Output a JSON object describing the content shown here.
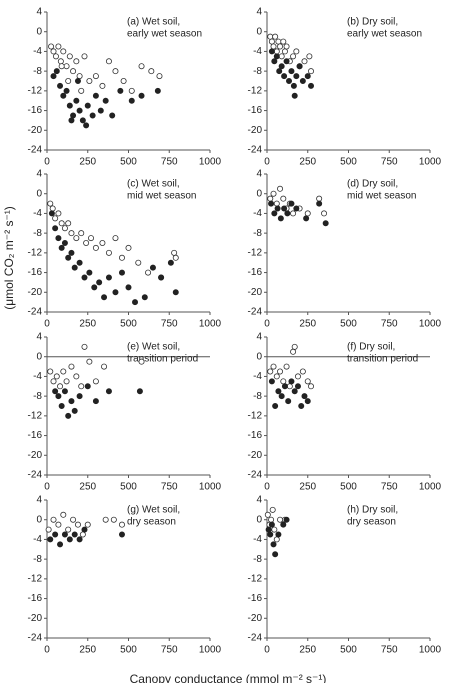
{
  "figure": {
    "xlabel": "Canopy conductance (mmol m⁻² s⁻¹)",
    "ylabel": "(μmol CO₂ m⁻² s⁻¹)"
  },
  "chart_data": [
    {
      "type": "scatter",
      "annotation": [
        "(a) Wet soil,",
        "early wet season"
      ],
      "xlim": [
        0,
        1000
      ],
      "xticks": [
        0,
        250,
        500,
        750,
        1000
      ],
      "ylim": [
        -24,
        4
      ],
      "yticks": [
        -24,
        -20,
        -16,
        -12,
        -8,
        -4,
        0,
        4
      ],
      "zero_line": false,
      "series": [
        {
          "color": "#333333",
          "filled": false,
          "x": [
            25,
            40,
            55,
            70,
            85,
            100,
            120,
            140,
            160,
            180,
            200,
            230,
            260,
            300,
            340,
            380,
            420,
            470,
            520,
            580,
            640,
            690,
            130,
            210,
            90
          ],
          "values": [
            -3,
            -4,
            -5,
            -3,
            -6,
            -4,
            -7,
            -5,
            -8,
            -6,
            -9,
            -5,
            -10,
            -9,
            -11,
            -6,
            -8,
            -10,
            -12,
            -7,
            -8,
            -9,
            -10,
            -12,
            -7
          ]
        },
        {
          "color": "#222222",
          "filled": true,
          "x": [
            40,
            60,
            80,
            100,
            120,
            140,
            160,
            180,
            200,
            220,
            250,
            280,
            300,
            330,
            360,
            400,
            450,
            520,
            580,
            680,
            150,
            240,
            190
          ],
          "values": [
            -9,
            -8,
            -11,
            -13,
            -12,
            -15,
            -17,
            -14,
            -16,
            -18,
            -15,
            -17,
            -13,
            -16,
            -14,
            -17,
            -12,
            -14,
            -13,
            -12,
            -18,
            -19,
            -10
          ]
        }
      ]
    },
    {
      "type": "scatter",
      "annotation": [
        "(b) Dry soil,",
        "early wet season"
      ],
      "xlim": [
        0,
        1000
      ],
      "xticks": [
        0,
        250,
        500,
        750,
        1000
      ],
      "ylim": [
        -24,
        4
      ],
      "yticks": [
        -24,
        -20,
        -16,
        -12,
        -8,
        -4,
        0,
        4
      ],
      "zero_line": false,
      "series": [
        {
          "color": "#333333",
          "filled": false,
          "x": [
            20,
            30,
            40,
            50,
            60,
            70,
            80,
            90,
            100,
            110,
            120,
            140,
            160,
            180,
            200,
            230,
            260,
            270
          ],
          "values": [
            -1,
            -2,
            -3,
            -1,
            -4,
            -2,
            -3,
            -5,
            -2,
            -4,
            -3,
            -6,
            -5,
            -4,
            -7,
            -6,
            -5,
            -8
          ]
        },
        {
          "color": "#222222",
          "filled": true,
          "x": [
            30,
            45,
            60,
            75,
            90,
            105,
            120,
            135,
            150,
            165,
            180,
            200,
            220,
            250,
            270,
            170
          ],
          "values": [
            -4,
            -6,
            -5,
            -8,
            -7,
            -9,
            -6,
            -10,
            -8,
            -11,
            -9,
            -7,
            -10,
            -9,
            -11,
            -13
          ]
        }
      ]
    },
    {
      "type": "scatter",
      "annotation": [
        "(c) Wet soil,",
        "mid wet season"
      ],
      "xlim": [
        0,
        1000
      ],
      "xticks": [
        0,
        250,
        500,
        750,
        1000
      ],
      "ylim": [
        -24,
        4
      ],
      "yticks": [
        -24,
        -20,
        -16,
        -12,
        -8,
        -4,
        0,
        4
      ],
      "zero_line": false,
      "series": [
        {
          "color": "#333333",
          "filled": false,
          "x": [
            20,
            35,
            50,
            70,
            90,
            110,
            130,
            150,
            180,
            210,
            240,
            270,
            300,
            340,
            380,
            420,
            460,
            500,
            560,
            620,
            700,
            780,
            790
          ],
          "values": [
            -2,
            -3,
            -5,
            -4,
            -6,
            -7,
            -6,
            -8,
            -9,
            -8,
            -10,
            -9,
            -11,
            -10,
            -12,
            -9,
            -13,
            -11,
            -14,
            -16,
            -17,
            -12,
            -13
          ]
        },
        {
          "color": "#222222",
          "filled": true,
          "x": [
            30,
            50,
            70,
            90,
            110,
            130,
            150,
            170,
            200,
            230,
            260,
            290,
            320,
            350,
            380,
            420,
            460,
            500,
            540,
            600,
            650,
            700,
            790,
            760
          ],
          "values": [
            -4,
            -7,
            -9,
            -11,
            -10,
            -13,
            -12,
            -15,
            -14,
            -17,
            -16,
            -19,
            -18,
            -21,
            -17,
            -20,
            -16,
            -19,
            -22,
            -21,
            -15,
            -17,
            -20,
            -14
          ]
        }
      ]
    },
    {
      "type": "scatter",
      "annotation": [
        "(d) Dry soil,",
        "mid wet season"
      ],
      "xlim": [
        0,
        1000
      ],
      "xticks": [
        0,
        250,
        500,
        750,
        1000
      ],
      "ylim": [
        -24,
        4
      ],
      "yticks": [
        -24,
        -20,
        -16,
        -12,
        -8,
        -4,
        0,
        4
      ],
      "zero_line": false,
      "series": [
        {
          "color": "#333333",
          "filled": false,
          "x": [
            20,
            40,
            60,
            80,
            100,
            120,
            140,
            160,
            200,
            250,
            320,
            350
          ],
          "values": [
            -1,
            0,
            -2,
            1,
            -1,
            -3,
            -2,
            -4,
            -3,
            -4,
            -1,
            -4
          ]
        },
        {
          "color": "#222222",
          "filled": true,
          "x": [
            25,
            45,
            65,
            85,
            105,
            125,
            150,
            180,
            240,
            320,
            360
          ],
          "values": [
            -2,
            -4,
            -3,
            -5,
            -3,
            -4,
            -2,
            -3,
            -5,
            -2,
            -6
          ]
        }
      ]
    },
    {
      "type": "scatter",
      "annotation": [
        "(e) Wet soil,",
        "transition period"
      ],
      "xlim": [
        0,
        1000
      ],
      "xticks": [
        0,
        250,
        500,
        750,
        1000
      ],
      "ylim": [
        -24,
        4
      ],
      "yticks": [
        -24,
        -20,
        -16,
        -12,
        -8,
        -4,
        0,
        4
      ],
      "zero_line": true,
      "series": [
        {
          "color": "#333333",
          "filled": false,
          "x": [
            20,
            40,
            60,
            80,
            100,
            120,
            150,
            180,
            210,
            230,
            260,
            300,
            350,
            580
          ],
          "values": [
            -3,
            -5,
            -4,
            -6,
            -3,
            -5,
            -2,
            -4,
            -6,
            2,
            -1,
            -5,
            -2,
            -1
          ]
        },
        {
          "color": "#222222",
          "filled": true,
          "x": [
            50,
            70,
            90,
            110,
            130,
            150,
            170,
            200,
            250,
            300,
            380,
            570
          ],
          "values": [
            -7,
            -8,
            -10,
            -7,
            -12,
            -9,
            -11,
            -8,
            -6,
            -9,
            -7,
            -7
          ]
        }
      ]
    },
    {
      "type": "scatter",
      "annotation": [
        "(f) Dry soil,",
        "transition period"
      ],
      "xlim": [
        0,
        1000
      ],
      "xticks": [
        0,
        250,
        500,
        750,
        1000
      ],
      "ylim": [
        -24,
        4
      ],
      "yticks": [
        -24,
        -20,
        -16,
        -12,
        -8,
        -4,
        0,
        4
      ],
      "zero_line": true,
      "series": [
        {
          "color": "#333333",
          "filled": false,
          "x": [
            20,
            40,
            60,
            80,
            100,
            120,
            140,
            160,
            170,
            190,
            220,
            250,
            270
          ],
          "values": [
            -3,
            -2,
            -4,
            -3,
            -5,
            -2,
            -6,
            1,
            2,
            -4,
            -3,
            -5,
            -6
          ]
        },
        {
          "color": "#222222",
          "filled": true,
          "x": [
            30,
            50,
            70,
            90,
            110,
            130,
            150,
            170,
            190,
            210,
            230,
            250
          ],
          "values": [
            -5,
            -10,
            -7,
            -8,
            -6,
            -9,
            -5,
            -7,
            -6,
            -10,
            -8,
            -9
          ]
        }
      ]
    },
    {
      "type": "scatter",
      "annotation": [
        "(g) Wet soil,",
        "dry season"
      ],
      "xlim": [
        0,
        1000
      ],
      "xticks": [
        0,
        250,
        500,
        750,
        1000
      ],
      "ylim": [
        -24,
        4
      ],
      "yticks": [
        -24,
        -20,
        -16,
        -12,
        -8,
        -4,
        0,
        4
      ],
      "zero_line": false,
      "series": [
        {
          "color": "#333333",
          "filled": false,
          "x": [
            10,
            40,
            70,
            100,
            130,
            160,
            190,
            220,
            250,
            360,
            410,
            460
          ],
          "values": [
            -2,
            0,
            -1,
            1,
            -2,
            0,
            -1,
            -3,
            -1,
            0,
            0,
            -1
          ]
        },
        {
          "color": "#222222",
          "filled": true,
          "x": [
            20,
            50,
            80,
            110,
            140,
            170,
            200,
            230,
            460
          ],
          "values": [
            -4,
            -3,
            -5,
            -3,
            -4,
            -3,
            -4,
            -2,
            -3
          ]
        }
      ]
    },
    {
      "type": "scatter",
      "annotation": [
        "(h) Dry soil,",
        "dry season"
      ],
      "xlim": [
        0,
        1000
      ],
      "xticks": [
        0,
        250,
        500,
        750,
        1000
      ],
      "ylim": [
        -24,
        4
      ],
      "yticks": [
        -24,
        -20,
        -16,
        -12,
        -8,
        -4,
        0,
        4
      ],
      "zero_line": false,
      "series": [
        {
          "color": "#333333",
          "filled": false,
          "x": [
            5,
            15,
            25,
            35,
            45,
            60,
            80,
            110
          ],
          "values": [
            1,
            -1,
            0,
            2,
            -2,
            -4,
            0,
            0
          ]
        },
        {
          "color": "#222222",
          "filled": true,
          "x": [
            10,
            20,
            30,
            40,
            50,
            70,
            100,
            120
          ],
          "values": [
            -2,
            -3,
            -1,
            -5,
            -7,
            -3,
            -1,
            0
          ]
        }
      ]
    }
  ]
}
